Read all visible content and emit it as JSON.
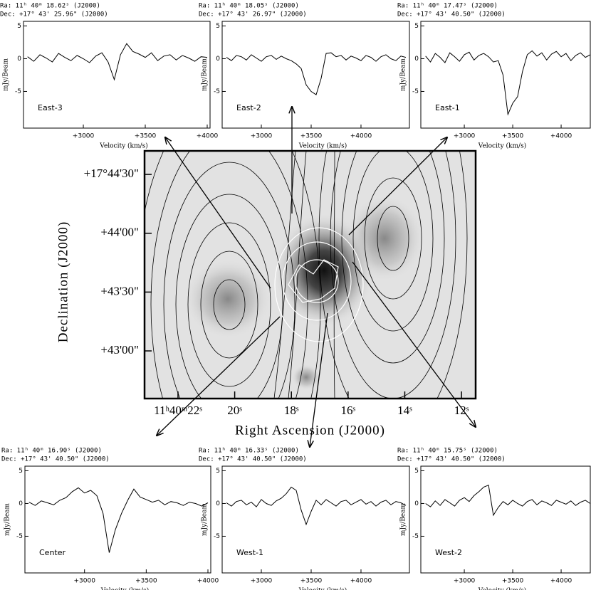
{
  "chart_data": [
    {
      "type": "line",
      "ra": "Ra: 11ʰ 40ᵐ 18.62ˢ (J2000)",
      "dec": "Dec: +17° 43' 25.96\" (J2000)",
      "label": "East-3",
      "ylabel": "mJy/Beam",
      "xlabel": "Velocity (km/s)",
      "color": "#000000",
      "xlim": [
        2517,
        4023
      ],
      "ylim": [
        -10.6,
        5.7
      ],
      "xticks": [
        {
          "value": 3000,
          "label": "+3000"
        },
        {
          "value": 3500,
          "label": "+3500"
        },
        {
          "value": 4000,
          "label": "+4000"
        }
      ],
      "yticks": [
        -5,
        0,
        5
      ],
      "x": [
        2550,
        2600,
        2650,
        2700,
        2750,
        2800,
        2850,
        2900,
        2950,
        3000,
        3050,
        3100,
        3150,
        3200,
        3250,
        3300,
        3350,
        3400,
        3450,
        3500,
        3550,
        3600,
        3650,
        3700,
        3750,
        3800,
        3850,
        3900,
        3950,
        4000
      ],
      "values": [
        0.3,
        -0.4,
        0.6,
        0.1,
        -0.5,
        0.8,
        0.2,
        -0.3,
        0.5,
        0.0,
        -0.6,
        0.4,
        0.9,
        -0.5,
        -3.2,
        0.6,
        2.3,
        1.1,
        0.7,
        0.2,
        0.9,
        -0.3,
        0.4,
        0.6,
        -0.2,
        0.5,
        0.1,
        -0.4,
        0.3,
        0.2
      ]
    },
    {
      "type": "line",
      "ra": "Ra: 11ʰ 40ᵐ 18.05ˢ (J2000)",
      "dec": "Dec: +17° 43' 26.97\" (J2000)",
      "label": "East-2",
      "ylabel": "mJy/Beam",
      "xlabel": "Velocity (km/s)",
      "color": "#000000",
      "xlim": [
        2607,
        4486
      ],
      "ylim": [
        -10.6,
        5.7
      ],
      "xticks": [
        {
          "value": 3000,
          "label": "+3000"
        },
        {
          "value": 3500,
          "label": "+3500"
        },
        {
          "value": 4000,
          "label": "+4000"
        }
      ],
      "yticks": [
        -5,
        0,
        5
      ],
      "x": [
        2650,
        2700,
        2750,
        2800,
        2850,
        2900,
        2950,
        3000,
        3050,
        3100,
        3150,
        3200,
        3250,
        3300,
        3350,
        3400,
        3450,
        3500,
        3550,
        3600,
        3650,
        3700,
        3750,
        3800,
        3850,
        3900,
        3950,
        4000,
        4050,
        4100,
        4150,
        4200,
        4250,
        4300,
        4350,
        4400,
        4450
      ],
      "values": [
        0.2,
        -0.3,
        0.5,
        0.3,
        -0.2,
        0.6,
        0.1,
        -0.4,
        0.3,
        0.5,
        -0.1,
        0.4,
        0.0,
        -0.3,
        -0.8,
        -1.5,
        -4.0,
        -5.0,
        -5.5,
        -3.0,
        0.8,
        0.9,
        0.3,
        0.5,
        -0.2,
        0.4,
        0.1,
        -0.3,
        0.5,
        0.2,
        -0.4,
        0.3,
        0.6,
        0.0,
        -0.3,
        0.4,
        0.2
      ]
    },
    {
      "type": "line",
      "ra": "Ra: 11ʰ 40ᵐ 17.47ˢ (J2000)",
      "dec": "Dec: +17° 43' 40.50\" (J2000)",
      "label": "East-1",
      "ylabel": "mJy/Beam",
      "xlabel": "Velocity (km/s)",
      "color": "#000000",
      "xlim": [
        2551,
        4301
      ],
      "ylim": [
        -10.6,
        5.7
      ],
      "xticks": [
        {
          "value": 3000,
          "label": "+3000"
        },
        {
          "value": 3500,
          "label": "+3500"
        },
        {
          "value": 4000,
          "label": "+4000"
        }
      ],
      "yticks": [
        -5,
        0,
        5
      ],
      "x": [
        2600,
        2650,
        2700,
        2750,
        2800,
        2850,
        2900,
        2950,
        3000,
        3050,
        3100,
        3150,
        3200,
        3250,
        3300,
        3350,
        3400,
        3450,
        3500,
        3550,
        3600,
        3650,
        3700,
        3750,
        3800,
        3850,
        3900,
        3950,
        4000,
        4050,
        4100,
        4150,
        4200,
        4250,
        4300
      ],
      "values": [
        0.4,
        -0.5,
        0.8,
        0.2,
        -0.6,
        0.9,
        0.3,
        -0.4,
        0.6,
        1.0,
        -0.2,
        0.5,
        0.8,
        0.3,
        -0.5,
        -0.3,
        -2.5,
        -8.5,
        -6.8,
        -5.8,
        -2.0,
        0.6,
        1.2,
        0.4,
        0.9,
        -0.2,
        0.7,
        1.1,
        0.3,
        0.8,
        -0.3,
        0.5,
        0.9,
        0.2,
        0.6
      ]
    },
    {
      "type": "line",
      "ra": "Ra: 11ʰ 40ᵐ 16.90ˢ (J2000)",
      "dec": "Dec: +17° 43' 40.50\" (J2000)",
      "label": "Center",
      "ylabel": "mJy/Beam",
      "xlabel": "Velocity (km/s)",
      "color": "#000000",
      "xlim": [
        2517,
        4023
      ],
      "ylim": [
        -10.6,
        5.7
      ],
      "xticks": [
        {
          "value": 3000,
          "label": "+3000"
        },
        {
          "value": 3500,
          "label": "+3500"
        },
        {
          "value": 4000,
          "label": "+4000"
        }
      ],
      "yticks": [
        -5,
        0,
        5
      ],
      "x": [
        2550,
        2600,
        2650,
        2700,
        2750,
        2800,
        2850,
        2900,
        2950,
        3000,
        3050,
        3100,
        3150,
        3200,
        3250,
        3300,
        3350,
        3400,
        3450,
        3500,
        3550,
        3600,
        3650,
        3700,
        3750,
        3800,
        3850,
        3900,
        3950,
        4000
      ],
      "values": [
        0.2,
        -0.3,
        0.4,
        0.1,
        -0.2,
        0.5,
        0.9,
        1.8,
        2.4,
        1.6,
        2.0,
        1.2,
        -1.5,
        -7.5,
        -4.0,
        -1.5,
        0.5,
        2.2,
        1.0,
        0.6,
        0.2,
        0.5,
        -0.2,
        0.3,
        0.1,
        -0.3,
        0.2,
        0.0,
        -0.4,
        0.1
      ]
    },
    {
      "type": "line",
      "ra": "Ra: 11ʰ 40ᵐ 16.33ˢ (J2000)",
      "dec": "Dec: +17° 43' 40.50\" (J2000)",
      "label": "West-1",
      "ylabel": "mJy/Beam",
      "xlabel": "Velocity (km/s)",
      "color": "#000000",
      "xlim": [
        2607,
        4486
      ],
      "ylim": [
        -10.6,
        5.7
      ],
      "xticks": [
        {
          "value": 3000,
          "label": "+3000"
        },
        {
          "value": 3500,
          "label": "+3500"
        },
        {
          "value": 4000,
          "label": "+4000"
        }
      ],
      "yticks": [
        -5,
        0,
        5
      ],
      "x": [
        2650,
        2700,
        2750,
        2800,
        2850,
        2900,
        2950,
        3000,
        3050,
        3100,
        3150,
        3200,
        3250,
        3300,
        3350,
        3400,
        3450,
        3500,
        3550,
        3600,
        3650,
        3700,
        3750,
        3800,
        3850,
        3900,
        3950,
        4000,
        4050,
        4100,
        4150,
        4200,
        4250,
        4300,
        4350,
        4400,
        4450
      ],
      "values": [
        0.1,
        -0.4,
        0.3,
        0.5,
        -0.2,
        0.2,
        -0.5,
        0.6,
        0.0,
        -0.3,
        0.4,
        0.8,
        1.5,
        2.5,
        2.0,
        -1.0,
        -3.2,
        -1.2,
        0.5,
        -0.2,
        0.6,
        0.1,
        -0.4,
        0.3,
        0.5,
        -0.2,
        0.2,
        0.6,
        -0.1,
        0.3,
        -0.4,
        0.2,
        0.5,
        -0.2,
        0.3,
        0.1,
        -0.3
      ]
    },
    {
      "type": "line",
      "ra": "Ra: 11ʰ 40ᵐ 15.75ˢ (J2000)",
      "dec": "Dec: +17° 43' 40.50\" (J2000)",
      "label": "West-2",
      "ylabel": "mJy/Beam",
      "xlabel": "Velocity (km/s)",
      "color": "#000000",
      "xlim": [
        2551,
        4301
      ],
      "ylim": [
        -10.6,
        5.7
      ],
      "xticks": [
        {
          "value": 3000,
          "label": "+3000"
        },
        {
          "value": 3500,
          "label": "+3500"
        },
        {
          "value": 4000,
          "label": "+4000"
        }
      ],
      "yticks": [
        -5,
        0,
        5
      ],
      "x": [
        2600,
        2650,
        2700,
        2750,
        2800,
        2850,
        2900,
        2950,
        3000,
        3050,
        3100,
        3150,
        3200,
        3250,
        3300,
        3350,
        3400,
        3450,
        3500,
        3550,
        3600,
        3650,
        3700,
        3750,
        3800,
        3850,
        3900,
        3950,
        4000,
        4050,
        4100,
        4150,
        4200,
        4250,
        4300
      ],
      "values": [
        0.0,
        -0.5,
        0.4,
        -0.3,
        0.6,
        0.1,
        -0.4,
        0.5,
        0.9,
        0.3,
        1.2,
        1.8,
        2.5,
        2.8,
        -1.8,
        -0.6,
        0.3,
        -0.2,
        0.5,
        0.0,
        -0.4,
        0.3,
        0.6,
        -0.2,
        0.4,
        0.1,
        -0.3,
        0.5,
        0.2,
        -0.1,
        0.4,
        -0.3,
        0.2,
        0.5,
        0.0
      ]
    },
    {
      "type": "map",
      "xlabel": "Right Ascension (J2000)",
      "ylabel": "Declination (J2000)",
      "xlim": [
        23.18,
        11.5
      ],
      "ylim": [
        -24.3,
        102
      ],
      "xticks": [
        {
          "value": 22,
          "label": "11ʰ40ᵐ22ˢ"
        },
        {
          "value": 20,
          "label": "20ˢ"
        },
        {
          "value": 18,
          "label": "18ˢ"
        },
        {
          "value": 16,
          "label": "16ˢ"
        },
        {
          "value": 14,
          "label": "14ˢ"
        },
        {
          "value": 12,
          "label": "12ˢ"
        }
      ],
      "yticks": [
        {
          "value": 90,
          "label": "+17°44'30\""
        },
        {
          "value": 60,
          "label": "+44'00\""
        },
        {
          "value": 30,
          "label": "+43'30\""
        },
        {
          "value": 0,
          "label": "+43'00\""
        }
      ]
    }
  ]
}
